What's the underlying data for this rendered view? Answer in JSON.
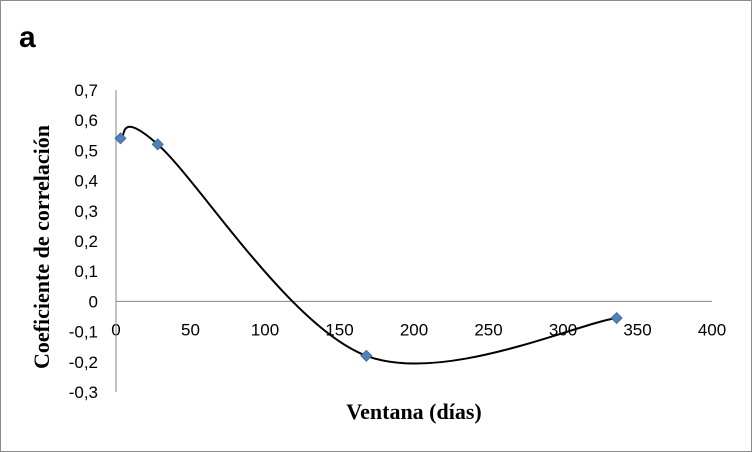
{
  "panel_label": "a",
  "chart_data": {
    "type": "scatter",
    "smooth_line": true,
    "title": "",
    "xlabel": "Ventana (días)",
    "ylabel": "Coeficiente de correlación",
    "xlim": [
      0,
      400
    ],
    "ylim": [
      -0.3,
      0.7
    ],
    "x_ticks": [
      0,
      50,
      100,
      150,
      200,
      250,
      300,
      350,
      400
    ],
    "x_tick_labels": [
      "0",
      "50",
      "100",
      "150",
      "200",
      "250",
      "300",
      "350",
      "400"
    ],
    "y_ticks": [
      0.7,
      0.6,
      0.5,
      0.4,
      0.3,
      0.2,
      0.1,
      0,
      -0.1,
      -0.2,
      -0.3
    ],
    "y_tick_labels": [
      "0,7",
      "0,6",
      "0,5",
      "0,4",
      "0,3",
      "0,2",
      "0,1",
      "0",
      "-0,1",
      "-0,2",
      "-0,3"
    ],
    "grid": false,
    "legend": "none",
    "series": [
      {
        "x": [
          3,
          28,
          168,
          336
        ],
        "y": [
          0.54,
          0.52,
          -0.18,
          -0.055
        ],
        "marker": "diamond",
        "marker_color": "#4f81bd",
        "line_color": "#000000"
      }
    ]
  }
}
